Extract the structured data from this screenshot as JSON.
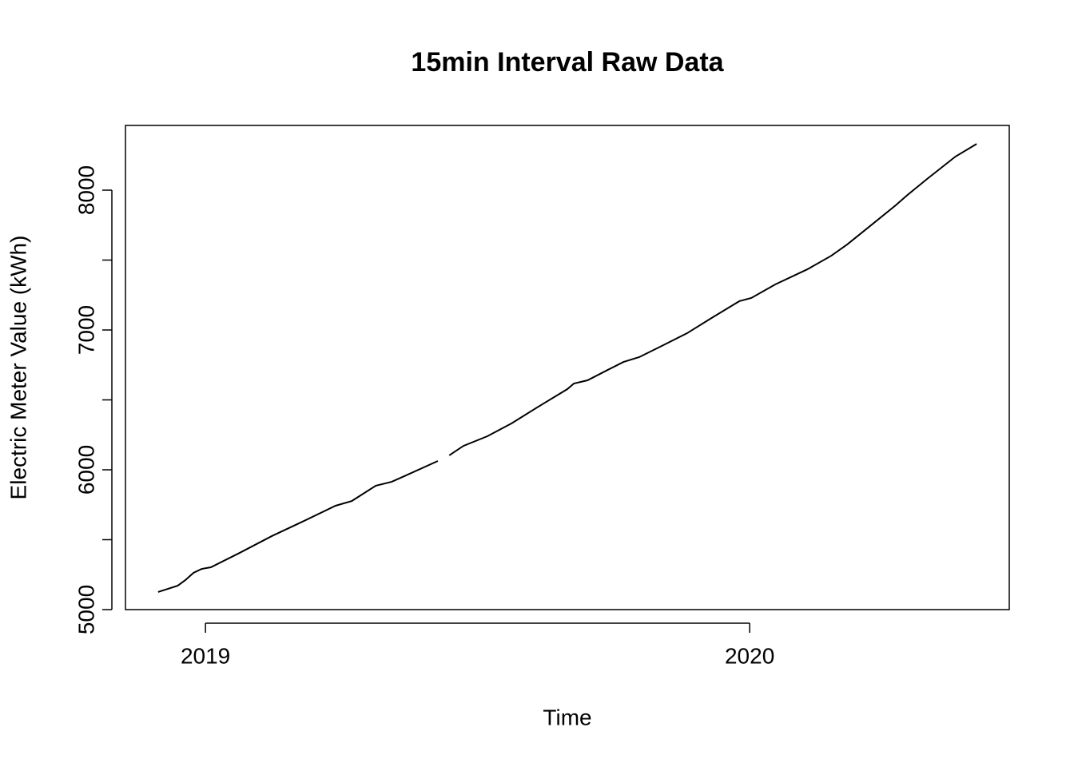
{
  "chart_data": {
    "type": "line",
    "title": "15min Interval Raw Data",
    "x_label": "Time",
    "y_label": "Electric Meter Value (kWh)",
    "x": [
      2018.913,
      2018.949,
      2018.963,
      2018.978,
      2018.993,
      2019.01,
      2019.063,
      2019.122,
      2019.181,
      2019.239,
      2019.269,
      2019.313,
      2019.342,
      2019.372,
      2019.427,
      2019.437,
      2019.448,
      2019.474,
      2019.518,
      2019.562,
      2019.614,
      2019.665,
      2019.677,
      2019.702,
      2019.739,
      2019.768,
      2019.797,
      2019.841,
      2019.885,
      2019.93,
      2019.981,
      2020.003,
      2020.047,
      2020.106,
      2020.15,
      2020.179,
      2020.223,
      2020.268,
      2020.29,
      2020.326,
      2020.378,
      2020.417
    ],
    "series": [
      {
        "color": "#000000",
        "values": [
          5126,
          5171,
          5211,
          5263,
          5291,
          5303,
          5406,
          5526,
          5634,
          5743,
          5777,
          5886,
          5914,
          5966,
          6063,
          null,
          6103,
          6171,
          6240,
          6331,
          6457,
          6577,
          6617,
          6640,
          6714,
          6771,
          6806,
          6891,
          6977,
          7086,
          7206,
          7229,
          7326,
          7434,
          7531,
          7611,
          7749,
          7891,
          7966,
          8080,
          8240,
          8331
        ]
      }
    ],
    "xlim": [
      2018.853,
      2020.477
    ],
    "xticks": [
      2019,
      2020
    ],
    "ylim": [
      5000,
      8463
    ],
    "yticks": [
      5000,
      6000,
      7000,
      8000
    ],
    "yminor_ticks": [
      5500,
      6500,
      7500
    ],
    "grid": false
  }
}
